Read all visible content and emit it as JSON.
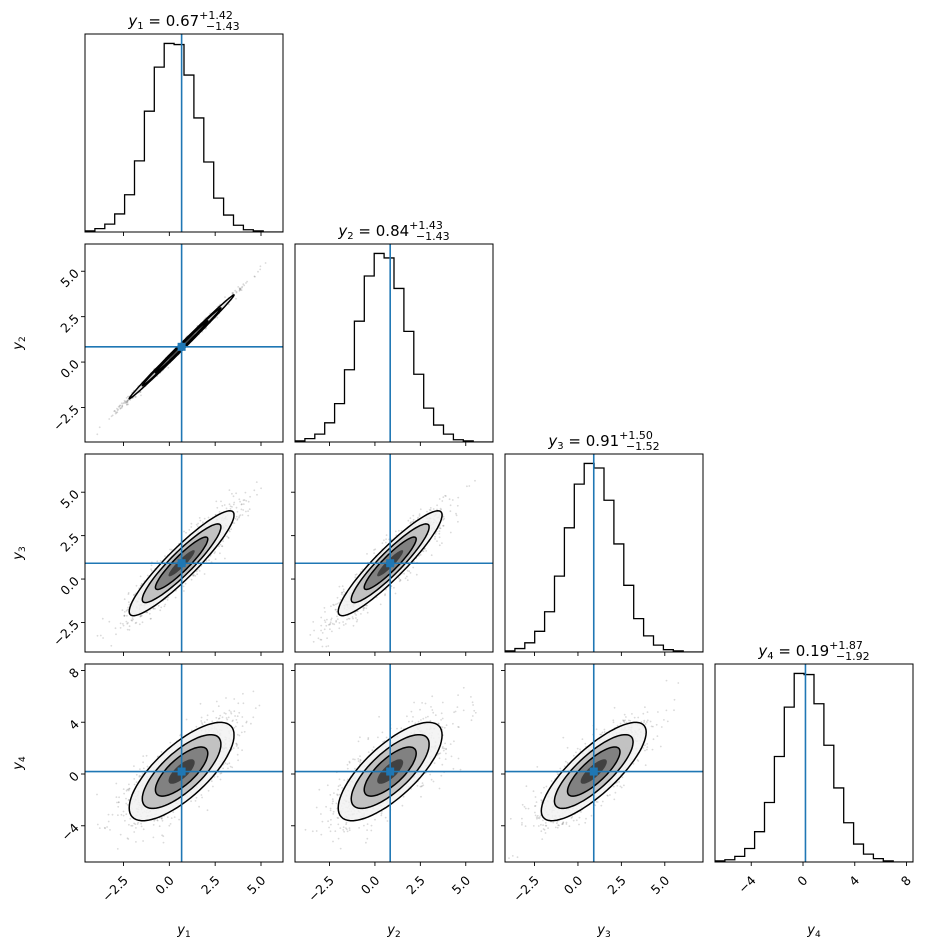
{
  "chart_data": {
    "type": "scatter",
    "subtype": "corner-plot",
    "grid": false,
    "legend": "none",
    "variables": [
      {
        "name": "y",
        "sub": "1",
        "median": "0.67",
        "plus": "+1.42",
        "minus": "−1.43",
        "range": [
          -4.6,
          6.2
        ],
        "ticks": [
          -2.5,
          0.0,
          2.5,
          5.0
        ],
        "tick_labels": [
          "−2.5",
          "0.0",
          "2.5",
          "5.0"
        ]
      },
      {
        "name": "y",
        "sub": "2",
        "median": "0.84",
        "plus": "+1.43",
        "minus": "−1.43",
        "range": [
          -4.4,
          6.5
        ],
        "ticks": [
          -2.5,
          0.0,
          2.5,
          5.0
        ],
        "tick_labels": [
          "−2.5",
          "0.0",
          "2.5",
          "5.0"
        ]
      },
      {
        "name": "y",
        "sub": "3",
        "median": "0.91",
        "plus": "+1.50",
        "minus": "−1.52",
        "range": [
          -4.2,
          7.2
        ],
        "ticks": [
          -2.5,
          0.0,
          2.5,
          5.0
        ],
        "tick_labels": [
          "−2.5",
          "0.0",
          "2.5",
          "5.0"
        ]
      },
      {
        "name": "y",
        "sub": "4",
        "median": "0.19",
        "plus": "+1.87",
        "minus": "−1.92",
        "range": [
          -6.8,
          8.5
        ],
        "ticks": [
          -4,
          0,
          4,
          8
        ],
        "tick_labels": [
          "−4",
          "0",
          "4",
          "8"
        ]
      }
    ],
    "truths": [
      0.67,
      0.84,
      0.91,
      0.19
    ],
    "histograms": [
      {
        "edges": [
          -4.6,
          -4.06,
          -3.52,
          -2.98,
          -2.44,
          -1.9,
          -1.36,
          -0.82,
          -0.28,
          0.26,
          0.8,
          1.34,
          1.88,
          2.42,
          2.96,
          3.5,
          4.04,
          4.58,
          5.12,
          5.66,
          6.2
        ],
        "counts": [
          1,
          3,
          7,
          16,
          33,
          63,
          107,
          146,
          167,
          166,
          139,
          101,
          62,
          30,
          15,
          6,
          2,
          1,
          0,
          0
        ]
      },
      {
        "edges": [
          -4.4,
          -3.855,
          -3.31,
          -2.765,
          -2.22,
          -1.675,
          -1.13,
          -0.585,
          -0.04,
          0.505,
          1.05,
          1.595,
          2.14,
          2.685,
          3.23,
          3.775,
          4.32,
          4.865,
          5.41,
          5.955,
          6.5
        ],
        "counts": [
          1,
          3,
          7,
          17,
          34,
          64,
          107,
          147,
          167,
          163,
          136,
          98,
          60,
          30,
          15,
          7,
          2,
          1,
          0,
          0
        ]
      },
      {
        "edges": [
          -4.2,
          -3.63,
          -3.06,
          -2.49,
          -1.92,
          -1.35,
          -0.78,
          -0.21,
          0.36,
          0.93,
          1.5,
          2.07,
          2.64,
          3.21,
          3.78,
          4.35,
          4.92,
          5.49,
          6.06,
          6.63,
          7.2
        ],
        "counts": [
          1,
          3,
          8,
          18,
          35,
          66,
          108,
          146,
          164,
          160,
          132,
          94,
          58,
          29,
          14,
          6,
          2,
          1,
          0,
          0
        ]
      },
      {
        "edges": [
          -6.8,
          -6.035,
          -5.27,
          -4.505,
          -3.74,
          -2.975,
          -2.21,
          -1.445,
          -0.68,
          0.085,
          0.85,
          1.615,
          2.38,
          3.145,
          3.91,
          4.675,
          5.44,
          6.205,
          6.97,
          7.735,
          8.5
        ],
        "counts": [
          1,
          2,
          5,
          12,
          27,
          53,
          94,
          138,
          168,
          167,
          141,
          104,
          66,
          35,
          16,
          7,
          3,
          1,
          0,
          0
        ]
      }
    ],
    "sigmas": [
      1.43,
      1.43,
      1.51,
      1.9
    ],
    "correlations": {
      "0-1": 0.997,
      "0-2": 0.92,
      "1-2": 0.92,
      "0-3": 0.74,
      "1-3": 0.74,
      "2-3": 0.8
    }
  }
}
